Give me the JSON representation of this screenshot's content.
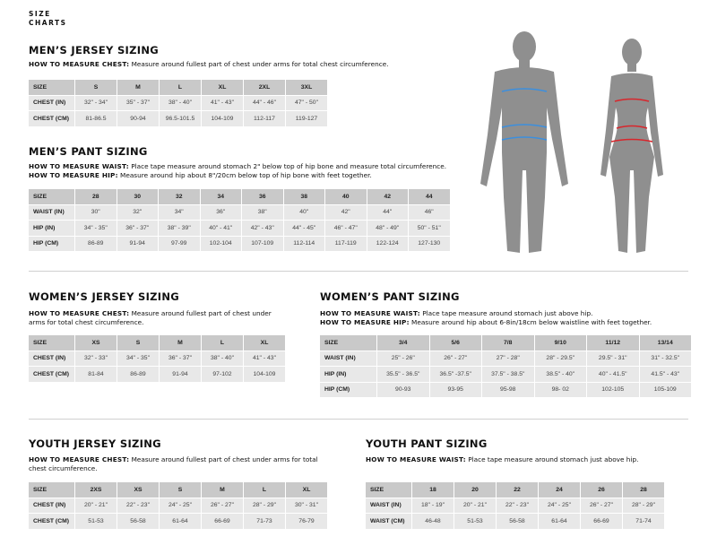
{
  "logo": {
    "line1": "SIZE",
    "line2": "CHARTS"
  },
  "sections": [
    {
      "id": "mens-jersey",
      "title": "MEN’S JERSEY SIZING",
      "instructions": [
        {
          "label": "HOW TO MEASURE CHEST:",
          "text": " Measure around fullest part of chest under arms for total chest circumference."
        }
      ],
      "table": {
        "header": [
          "SIZE",
          "S",
          "M",
          "L",
          "XL",
          "2XL",
          "3XL"
        ],
        "rows": [
          [
            "CHEST (IN)",
            "32\" - 34\"",
            "35\" - 37\"",
            "38\" - 40\"",
            "41\" - 43\"",
            "44\" - 46\"",
            "47\" - 50\""
          ],
          [
            "CHEST (CM)",
            "81-86.5",
            "90-94",
            "96.5-101.5",
            "104-109",
            "112-117",
            "119-127"
          ]
        ]
      }
    },
    {
      "id": "mens-pant",
      "title": "MEN’S PANT SIZING",
      "instructions": [
        {
          "label": "HOW TO MEASURE WAIST:",
          "text": " Place tape measure around stomach 2\" below top of hip bone and measure total circumference."
        },
        {
          "label": "HOW TO MEASURE HIP:",
          "text": " Measure around hip about 8\"/20cm below top of hip bone with feet together."
        }
      ],
      "table": {
        "header": [
          "SIZE",
          "28",
          "30",
          "32",
          "34",
          "36",
          "38",
          "40",
          "42",
          "44"
        ],
        "rows": [
          [
            "WAIST (IN)",
            "30\"",
            "32\"",
            "34\"",
            "36\"",
            "38\"",
            "40\"",
            "42\"",
            "44\"",
            "46\""
          ],
          [
            "HIP (IN)",
            "34\" - 35\"",
            "36\" - 37\"",
            "38\" - 39\"",
            "40\" - 41\"",
            "42\" - 43\"",
            "44\" - 45\"",
            "46\" - 47\"",
            "48\" - 49\"",
            "50\" - 51\""
          ],
          [
            "HIP (CM)",
            "86-89",
            "91-94",
            "97-99",
            "102-104",
            "107-109",
            "112-114",
            "117-119",
            "122-124",
            "127-130"
          ]
        ]
      }
    },
    {
      "id": "womens-jersey",
      "title": "WOMEN’S JERSEY SIZING",
      "instructions": [
        {
          "label": "HOW TO MEASURE CHEST:",
          "text": " Measure around fullest part of chest under arms for total chest circumference."
        }
      ],
      "table": {
        "header": [
          "SIZE",
          "XS",
          "S",
          "M",
          "L",
          "XL"
        ],
        "rows": [
          [
            "CHEST (IN)",
            "32\" - 33\"",
            "34\" - 35\"",
            "36\" - 37\"",
            "38\" - 40\"",
            "41\" - 43\""
          ],
          [
            "CHEST (CM)",
            "81-84",
            "86-89",
            "91-94",
            "97-102",
            "104-109"
          ]
        ]
      }
    },
    {
      "id": "womens-pant",
      "title": "WOMEN’S PANT SIZING",
      "instructions": [
        {
          "label": "HOW TO MEASURE WAIST:",
          "text": " Place tape measure around stomach just above hip."
        },
        {
          "label": "HOW TO MEASURE HIP:",
          "text": " Measure around hip about 6-8in/18cm below waistline with feet together."
        }
      ],
      "table": {
        "header": [
          "SIZE",
          "3/4",
          "5/6",
          "7/8",
          "9/10",
          "11/12",
          "13/14"
        ],
        "rows": [
          [
            "WAIST (IN)",
            "25\" - 26\"",
            "26\" - 27\"",
            "27\" - 28\"",
            "28\" - 29.5\"",
            "29.5\" - 31\"",
            "31\" - 32.5\""
          ],
          [
            "HIP (IN)",
            "35.5\" - 36.5\"",
            "36.5\" -37.5\"",
            "37.5\" - 38.5\"",
            "38.5\" - 40\"",
            "40\" - 41.5\"",
            "41.5\" - 43\""
          ],
          [
            "HIP (CM)",
            "90-93",
            "93-95",
            "95-98",
            "98- 02",
            "102-105",
            "105-109"
          ]
        ]
      }
    },
    {
      "id": "youth-jersey",
      "title": "YOUTH JERSEY SIZING",
      "instructions": [
        {
          "label": "HOW TO MEASURE CHEST:",
          "text": " Measure around fullest part of chest under arms for total chest circumference."
        }
      ],
      "table": {
        "header": [
          "SIZE",
          "2XS",
          "XS",
          "S",
          "M",
          "L",
          "XL"
        ],
        "rows": [
          [
            "CHEST (IN)",
            "20\" - 21\"",
            "22\" - 23\"",
            "24\" - 25\"",
            "26\" - 27\"",
            "28\" - 29\"",
            "30\" - 31\""
          ],
          [
            "CHEST (CM)",
            "51-53",
            "56-58",
            "61-64",
            "66-69",
            "71-73",
            "76-79"
          ]
        ]
      }
    },
    {
      "id": "youth-pant",
      "title": "YOUTH PANT SIZING",
      "instructions": [
        {
          "label": "HOW TO MEASURE WAIST:",
          "text": " Place tape measure around stomach just above hip."
        }
      ],
      "table": {
        "header": [
          "SIZE",
          "18",
          "20",
          "22",
          "24",
          "26",
          "28"
        ],
        "rows": [
          [
            "WAIST (IN)",
            "18\" - 19\"",
            "20\" - 21\"",
            "22\" - 23\"",
            "24\" - 25\"",
            "26\" - 27\"",
            "28\" - 29\""
          ],
          [
            "WAIST (CM)",
            "46-48",
            "51-53",
            "56-58",
            "61-64",
            "66-69",
            "71-74"
          ]
        ]
      }
    }
  ],
  "colors": {
    "male_tape": "#3a8fe0",
    "female_tape": "#d8262c",
    "figure": "#8f8f8f"
  }
}
